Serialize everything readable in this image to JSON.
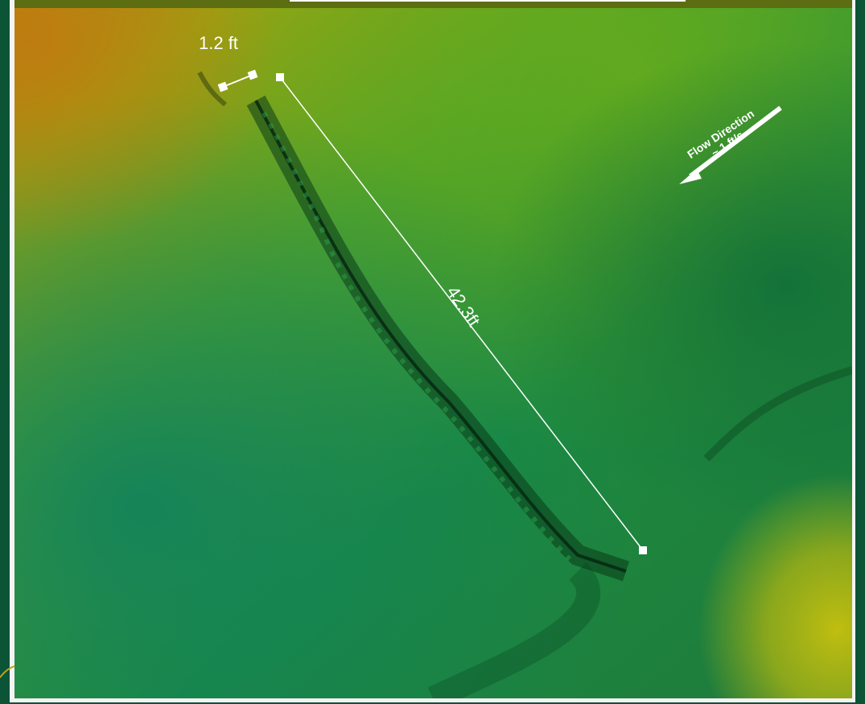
{
  "measurements": {
    "short_label": "1.2 ft",
    "long_label": "42.3ft"
  },
  "flow": {
    "title": "Flow Direction",
    "speed": "~ 1 ft/s"
  },
  "colors": {
    "frame": "#0b5436",
    "panel": "#f4f4f4",
    "topbar": "#5c6d12",
    "annotation": "#ffffff"
  }
}
